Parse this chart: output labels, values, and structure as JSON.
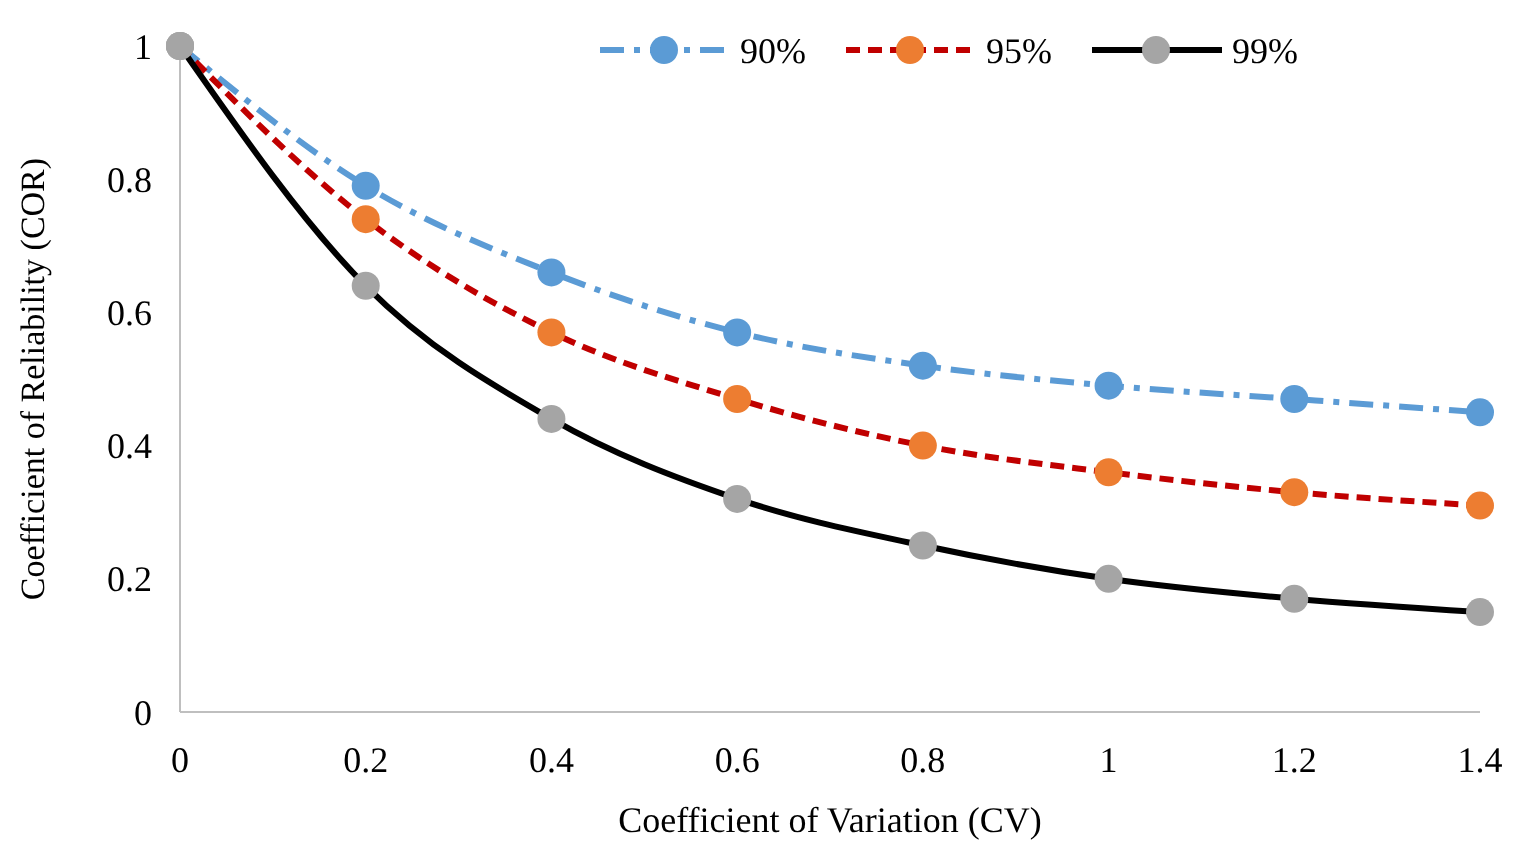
{
  "chart_data": {
    "type": "line",
    "xlabel": "Coefficient of Variation (CV)",
    "ylabel": "Coefficient of Reliability (COR)",
    "x": [
      0,
      0.2,
      0.4,
      0.6,
      0.8,
      1,
      1.2,
      1.4
    ],
    "xlim": [
      0,
      1.4
    ],
    "xticks": [
      0,
      0.2,
      0.4,
      0.6,
      0.8,
      1,
      1.2,
      1.4
    ],
    "ylim": [
      0,
      1
    ],
    "yticks": [
      0,
      0.2,
      0.4,
      0.6,
      0.8,
      1
    ],
    "grid": false,
    "legend": "top right",
    "marker": "circle",
    "series": [
      {
        "name": "90%",
        "color": "#5b9bd5",
        "line_style": "dashdot",
        "colors": [
          "#a5a5a5",
          "#5b9bd5",
          "#5b9bd5",
          "#5b9bd5",
          "#5b9bd5",
          "#5b9bd5",
          "#5b9bd5",
          "#5b9bd5"
        ],
        "values": [
          1,
          0.79,
          0.66,
          0.57,
          0.52,
          0.49,
          0.47,
          0.45
        ]
      },
      {
        "name": "95%",
        "color": "#c00000",
        "line_style": "dashed",
        "colors": [
          "#a5a5a5",
          "#ed7d31",
          "#ed7d31",
          "#ed7d31",
          "#ed7d31",
          "#ed7d31",
          "#ed7d31",
          "#ed7d31"
        ],
        "values": [
          1,
          0.74,
          0.57,
          0.47,
          0.4,
          0.36,
          0.33,
          0.31
        ]
      },
      {
        "name": "99%",
        "color": "#000000",
        "line_style": "solid",
        "colors": [
          "#a5a5a5",
          "#a5a5a5",
          "#a5a5a5",
          "#a5a5a5",
          "#a5a5a5",
          "#a5a5a5",
          "#a5a5a5",
          "#a5a5a5"
        ],
        "values": [
          1,
          0.64,
          0.44,
          0.32,
          0.25,
          0.2,
          0.17,
          0.15
        ]
      }
    ]
  }
}
